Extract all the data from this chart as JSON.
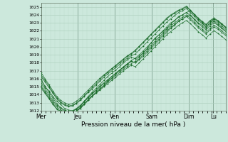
{
  "bg_color": "#cce8dc",
  "grid_color_major": "#aaccbb",
  "grid_color_minor": "#bbddcc",
  "line_color": "#1a6b2a",
  "xlabel": "Pression niveau de la mer( hPa )",
  "ylim": [
    1012,
    1025.5
  ],
  "yticks": [
    1012,
    1013,
    1014,
    1015,
    1016,
    1017,
    1018,
    1019,
    1020,
    1021,
    1022,
    1023,
    1024,
    1025
  ],
  "day_labels": [
    "Mer",
    "Jeu",
    "Ven",
    "Sam",
    "Dim",
    "Lu"
  ],
  "day_positions": [
    0.0,
    0.2,
    0.4,
    0.6,
    0.8,
    0.933
  ],
  "xlim": [
    0,
    1.0
  ],
  "series": [
    [
      1016.0,
      1015.0,
      1014.5,
      1013.8,
      1013.2,
      1012.8,
      1012.3,
      1012.1,
      1012.0,
      1012.2,
      1012.5,
      1013.2,
      1013.8,
      1014.3,
      1014.8,
      1015.3,
      1015.8,
      1016.3,
      1016.7,
      1017.1,
      1017.5,
      1018.0,
      1018.4,
      1018.7,
      1018.5,
      1018.8,
      1019.3,
      1019.8,
      1020.5,
      1021.1,
      1021.5,
      1021.9,
      1022.3,
      1022.8,
      1023.3,
      1023.8,
      1024.0,
      1024.3,
      1024.5,
      1024.0,
      1023.5,
      1023.0,
      1022.5,
      1023.0,
      1023.5,
      1023.2,
      1022.8,
      1022.4
    ],
    [
      1015.5,
      1014.8,
      1014.0,
      1013.3,
      1012.7,
      1012.3,
      1012.0,
      1011.9,
      1011.8,
      1012.0,
      1012.3,
      1012.8,
      1013.3,
      1013.8,
      1014.3,
      1014.8,
      1015.2,
      1015.7,
      1016.1,
      1016.6,
      1017.0,
      1017.4,
      1017.8,
      1018.2,
      1018.0,
      1018.4,
      1018.8,
      1019.3,
      1019.8,
      1020.3,
      1020.8,
      1021.3,
      1021.8,
      1022.3,
      1022.7,
      1023.2,
      1023.5,
      1023.8,
      1024.0,
      1023.5,
      1023.0,
      1022.7,
      1022.3,
      1022.8,
      1023.2,
      1022.8,
      1022.4,
      1022.0
    ],
    [
      1015.2,
      1014.5,
      1013.8,
      1013.1,
      1012.5,
      1012.1,
      1011.9,
      1011.8,
      1011.9,
      1012.2,
      1012.6,
      1013.1,
      1013.6,
      1014.1,
      1014.5,
      1015.0,
      1015.4,
      1015.8,
      1016.3,
      1016.7,
      1017.1,
      1017.5,
      1017.9,
      1018.3,
      1018.6,
      1019.0,
      1019.5,
      1020.0,
      1020.5,
      1021.0,
      1021.5,
      1022.0,
      1022.5,
      1023.0,
      1023.3,
      1023.7,
      1024.0,
      1024.3,
      1023.9,
      1023.4,
      1022.9,
      1022.5,
      1022.1,
      1022.6,
      1023.0,
      1022.7,
      1022.3,
      1021.9
    ],
    [
      1014.8,
      1014.2,
      1013.5,
      1012.8,
      1012.2,
      1011.9,
      1011.7,
      1011.6,
      1011.7,
      1012.0,
      1012.4,
      1012.9,
      1013.4,
      1013.9,
      1014.3,
      1014.7,
      1015.1,
      1015.6,
      1016.0,
      1016.4,
      1016.8,
      1017.2,
      1017.6,
      1017.9,
      1018.2,
      1018.7,
      1019.2,
      1019.7,
      1020.2,
      1020.7,
      1021.2,
      1021.7,
      1022.2,
      1022.6,
      1023.0,
      1023.4,
      1023.7,
      1024.0,
      1023.6,
      1023.1,
      1022.6,
      1022.2,
      1021.8,
      1022.3,
      1022.7,
      1022.4,
      1022.0,
      1021.6
    ],
    [
      1016.3,
      1015.6,
      1014.9,
      1014.2,
      1013.5,
      1013.0,
      1012.7,
      1012.5,
      1012.6,
      1012.9,
      1013.3,
      1013.8,
      1014.3,
      1014.7,
      1015.2,
      1015.7,
      1016.2,
      1016.6,
      1017.0,
      1017.4,
      1017.8,
      1018.2,
      1018.6,
      1018.9,
      1019.1,
      1019.6,
      1020.1,
      1020.6,
      1021.1,
      1021.6,
      1022.1,
      1022.6,
      1023.1,
      1023.5,
      1023.9,
      1024.3,
      1024.5,
      1024.8,
      1024.3,
      1023.8,
      1023.3,
      1022.9,
      1022.5,
      1023.0,
      1023.3,
      1023.0,
      1022.6,
      1022.2
    ],
    [
      1016.5,
      1015.8,
      1015.1,
      1014.3,
      1013.6,
      1013.1,
      1012.8,
      1012.6,
      1012.7,
      1013.0,
      1013.4,
      1013.9,
      1014.4,
      1014.9,
      1015.4,
      1015.9,
      1016.4,
      1016.8,
      1017.2,
      1017.6,
      1018.0,
      1018.4,
      1018.8,
      1019.1,
      1019.5,
      1020.0,
      1020.5,
      1021.0,
      1021.5,
      1022.0,
      1022.5,
      1023.0,
      1023.5,
      1023.9,
      1024.2,
      1024.5,
      1024.7,
      1025.0,
      1024.5,
      1024.0,
      1023.5,
      1023.1,
      1022.7,
      1023.2,
      1023.5,
      1023.2,
      1022.8,
      1022.4
    ],
    [
      1015.8,
      1015.1,
      1014.3,
      1013.6,
      1012.9,
      1012.4,
      1012.1,
      1011.9,
      1012.0,
      1012.3,
      1012.7,
      1013.2,
      1013.7,
      1014.2,
      1014.6,
      1015.1,
      1015.5,
      1015.9,
      1016.3,
      1016.7,
      1017.1,
      1017.5,
      1017.9,
      1018.2,
      1018.0,
      1018.5,
      1019.0,
      1019.5,
      1020.0,
      1020.5,
      1021.0,
      1021.5,
      1022.0,
      1022.4,
      1022.8,
      1023.2,
      1023.5,
      1023.8,
      1023.4,
      1022.9,
      1022.4,
      1022.0,
      1021.6,
      1022.1,
      1022.5,
      1022.2,
      1021.8,
      1021.4
    ],
    [
      1016.8,
      1016.0,
      1015.3,
      1014.5,
      1013.8,
      1013.3,
      1013.0,
      1012.8,
      1012.9,
      1013.2,
      1013.6,
      1014.1,
      1014.6,
      1015.1,
      1015.6,
      1016.1,
      1016.5,
      1016.9,
      1017.3,
      1017.7,
      1018.1,
      1018.5,
      1018.9,
      1019.2,
      1019.6,
      1020.1,
      1020.6,
      1021.1,
      1021.6,
      1022.1,
      1022.6,
      1023.1,
      1023.6,
      1024.0,
      1024.3,
      1024.6,
      1024.8,
      1025.1,
      1024.6,
      1024.1,
      1023.6,
      1023.2,
      1022.8,
      1023.3,
      1023.6,
      1023.3,
      1022.9,
      1022.5
    ],
    [
      1015.0,
      1014.3,
      1013.6,
      1012.9,
      1012.3,
      1011.9,
      1011.6,
      1011.5,
      1011.6,
      1011.9,
      1012.3,
      1012.8,
      1013.3,
      1013.8,
      1014.2,
      1014.6,
      1015.0,
      1015.4,
      1015.8,
      1016.2,
      1016.6,
      1017.0,
      1017.4,
      1017.7,
      1017.5,
      1018.0,
      1018.5,
      1019.0,
      1019.5,
      1020.0,
      1020.5,
      1021.0,
      1021.5,
      1021.9,
      1022.3,
      1022.7,
      1023.0,
      1023.3,
      1022.9,
      1022.4,
      1021.9,
      1021.5,
      1021.1,
      1021.6,
      1022.0,
      1021.7,
      1021.3,
      1020.9
    ]
  ]
}
